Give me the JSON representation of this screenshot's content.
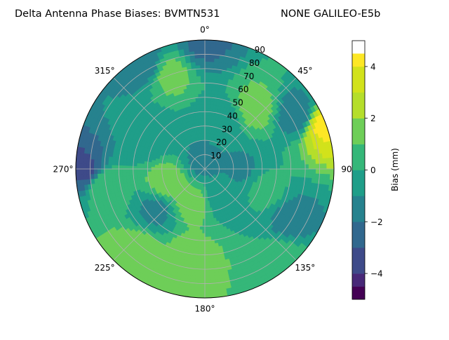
{
  "chart_data": {
    "type": "heatmap",
    "projection": "polar",
    "title": "Delta Antenna Phase Biases: BVMTN531",
    "subtitle": "NONE GALILEO-E5b",
    "theta_labels": [
      "0°",
      "45°",
      "90",
      "135°",
      "180°",
      "225°",
      "270°",
      "315°"
    ],
    "theta_values_deg": [
      0,
      45,
      90,
      135,
      180,
      225,
      270,
      315
    ],
    "theta_direction": "clockwise",
    "theta_zero": "N",
    "r_labels": [
      "10",
      "20",
      "30",
      "40",
      "50",
      "60",
      "70",
      "80",
      "90"
    ],
    "r_values": [
      10,
      20,
      30,
      40,
      50,
      60,
      70,
      80,
      90
    ],
    "rlim": [
      0,
      90
    ],
    "grid": true,
    "colorbar": {
      "label": "Bias (mm)",
      "range": [
        -5,
        5
      ],
      "ticks": [
        -4,
        -2,
        0,
        2,
        4
      ],
      "tick_labels": [
        "−4",
        "−2",
        "0",
        "2",
        "4"
      ],
      "levels": [
        -5,
        -4.5,
        -4,
        -3,
        -2,
        -1,
        0,
        1,
        2,
        3,
        4,
        4.5,
        5
      ],
      "colors": [
        "#440154",
        "#482878",
        "#3e4a89",
        "#31688e",
        "#26828e",
        "#1f9e89",
        "#35b779",
        "#6ece58",
        "#b5de2b",
        "#d2e21b",
        "#fde725"
      ]
    },
    "field_values_mm": [
      {
        "azimuth": 0,
        "elevation_r": 5,
        "bias": -1.3
      },
      {
        "azimuth": 200,
        "elevation_r": 25,
        "bias": 1.5
      },
      {
        "azimuth": 250,
        "elevation_r": 28,
        "bias": 1.6
      },
      {
        "azimuth": 150,
        "elevation_r": 22,
        "bias": -0.7
      },
      {
        "azimuth": 90,
        "elevation_r": 25,
        "bias": -1.1
      },
      {
        "azimuth": 20,
        "elevation_r": 35,
        "bias": -0.6
      },
      {
        "azimuth": 40,
        "elevation_r": 55,
        "bias": 1.4
      },
      {
        "azimuth": 340,
        "elevation_r": 70,
        "bias": 1.3
      },
      {
        "azimuth": 300,
        "elevation_r": 45,
        "bias": -0.8
      },
      {
        "azimuth": 270,
        "elevation_r": 85,
        "bias": -3.2
      },
      {
        "azimuth": 330,
        "elevation_r": 85,
        "bias": -1.8
      },
      {
        "azimuth": 0,
        "elevation_r": 88,
        "bias": -2.2
      },
      {
        "azimuth": 70,
        "elevation_r": 88,
        "bias": 4.2
      },
      {
        "azimuth": 60,
        "elevation_r": 75,
        "bias": -1.8
      },
      {
        "azimuth": 120,
        "elevation_r": 70,
        "bias": -1.4
      },
      {
        "azimuth": 140,
        "elevation_r": 85,
        "bias": 0.8
      },
      {
        "azimuth": 190,
        "elevation_r": 65,
        "bias": 1.6
      },
      {
        "azimuth": 220,
        "elevation_r": 75,
        "bias": 1.8
      },
      {
        "azimuth": 230,
        "elevation_r": 45,
        "bias": -1.2
      },
      {
        "azimuth": 260,
        "elevation_r": 70,
        "bias": 0.8
      },
      {
        "azimuth": 110,
        "elevation_r": 45,
        "bias": 0.3
      }
    ]
  }
}
